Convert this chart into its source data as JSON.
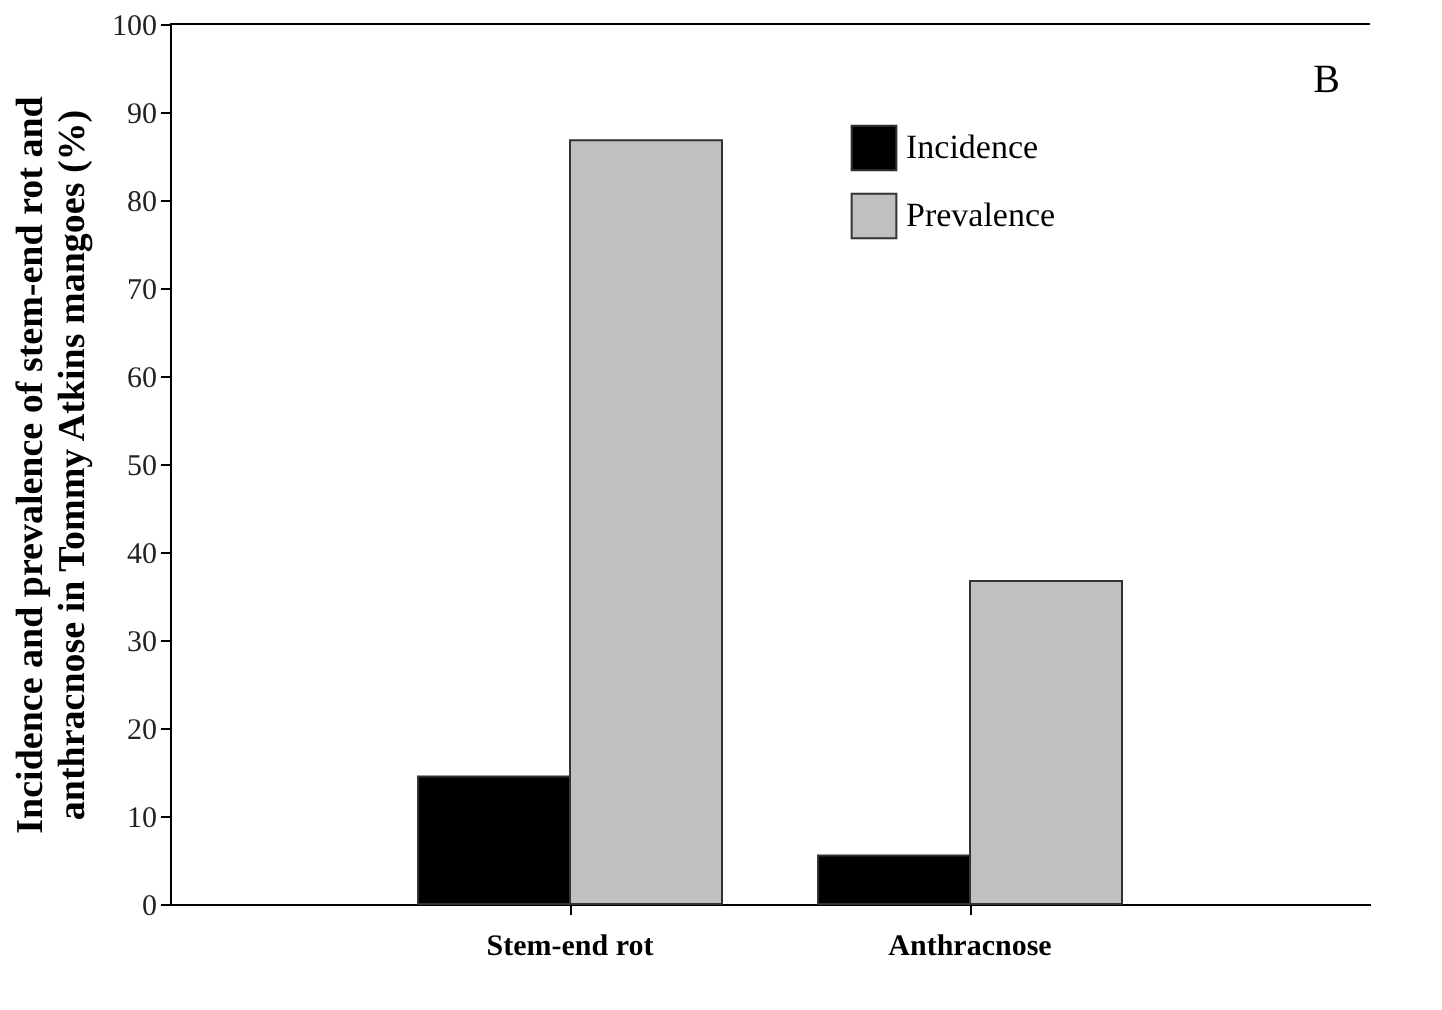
{
  "chart_data": {
    "type": "bar",
    "ylabel": "Incidence and prevalence of stem-end rot and anthracnose in Tommy Atkins mangoes (%)",
    "categories": [
      "Stem-end rot",
      "Anthracnose"
    ],
    "series": [
      {
        "name": "Incidence",
        "color": "#000000",
        "values": [
          14.5,
          5.5
        ]
      },
      {
        "name": "Prevalence",
        "color": "#c0c0c0",
        "values": [
          86.8,
          36.7
        ]
      }
    ],
    "ylim": [
      0,
      100
    ],
    "yticks": [
      0,
      10,
      20,
      30,
      40,
      50,
      60,
      70,
      80,
      90,
      100
    ],
    "grid": false,
    "legend": "top right",
    "annotations": [
      "B"
    ]
  }
}
